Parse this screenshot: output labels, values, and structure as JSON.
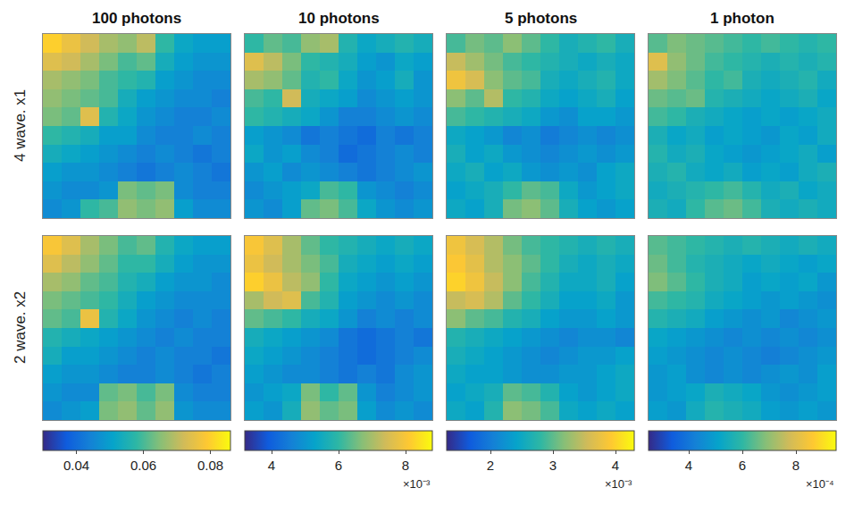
{
  "chart_data": {
    "type": "heatmap",
    "tick_labels": false,
    "rows": [
      "4 wave. x1",
      "2 wave. x2"
    ],
    "columns": [
      {
        "title": "100 photons",
        "color_range": [
          0.03,
          0.086
        ],
        "color_ticks": [
          0.04,
          0.06,
          0.08
        ]
      },
      {
        "title": "10 photons",
        "color_range": [
          0.0032,
          0.0088
        ],
        "color_ticks": [
          {
            "value": 0.004,
            "label": "4"
          },
          {
            "value": 0.006,
            "label": "6"
          },
          {
            "value": 0.008,
            "label": "8"
          }
        ],
        "color_exponent": "×10⁻³"
      },
      {
        "title": "5 photons",
        "color_range": [
          0.0013,
          0.0043
        ],
        "color_ticks": [
          {
            "value": 0.002,
            "label": "2"
          },
          {
            "value": 0.003,
            "label": "3"
          },
          {
            "value": 0.004,
            "label": "4"
          }
        ],
        "color_exponent": "×10⁻³"
      },
      {
        "title": "1 photon",
        "color_range": [
          0.00025,
          0.00095
        ],
        "color_ticks": [
          {
            "value": 0.0004,
            "label": "4"
          },
          {
            "value": 0.0006,
            "label": "6"
          },
          {
            "value": 0.0008,
            "label": "8"
          }
        ],
        "color_exponent": "×10⁻⁴"
      }
    ],
    "cells": [
      [
        [
          [
            0.08,
            0.076,
            0.072,
            0.068,
            0.066,
            0.07,
            0.058,
            0.052,
            0.05,
            0.05
          ],
          [
            0.074,
            0.072,
            0.068,
            0.064,
            0.06,
            0.062,
            0.054,
            0.05,
            0.048,
            0.048
          ],
          [
            0.068,
            0.066,
            0.064,
            0.06,
            0.058,
            0.056,
            0.05,
            0.048,
            0.046,
            0.046
          ],
          [
            0.066,
            0.064,
            0.062,
            0.06,
            0.054,
            0.05,
            0.048,
            0.046,
            0.046,
            0.044
          ],
          [
            0.064,
            0.062,
            0.074,
            0.056,
            0.052,
            0.048,
            0.046,
            0.044,
            0.044,
            0.046
          ],
          [
            0.058,
            0.056,
            0.054,
            0.05,
            0.05,
            0.046,
            0.044,
            0.044,
            0.046,
            0.044
          ],
          [
            0.054,
            0.052,
            0.05,
            0.048,
            0.046,
            0.044,
            0.046,
            0.044,
            0.042,
            0.044
          ],
          [
            0.05,
            0.048,
            0.048,
            0.046,
            0.044,
            0.042,
            0.044,
            0.046,
            0.044,
            0.042
          ],
          [
            0.048,
            0.046,
            0.046,
            0.048,
            0.064,
            0.062,
            0.064,
            0.046,
            0.044,
            0.044
          ],
          [
            0.046,
            0.048,
            0.058,
            0.06,
            0.066,
            0.064,
            0.066,
            0.05,
            0.046,
            0.046
          ]
        ],
        [
          [
            0.006,
            0.0064,
            0.0062,
            0.0068,
            0.007,
            0.0058,
            0.0054,
            0.0056,
            0.0058,
            0.0056
          ],
          [
            0.0076,
            0.0072,
            0.0066,
            0.006,
            0.0058,
            0.0056,
            0.0052,
            0.005,
            0.0054,
            0.0052
          ],
          [
            0.007,
            0.0068,
            0.0064,
            0.0058,
            0.006,
            0.0054,
            0.005,
            0.0052,
            0.0056,
            0.005
          ],
          [
            0.0062,
            0.006,
            0.0074,
            0.0056,
            0.0054,
            0.0052,
            0.0048,
            0.005,
            0.0052,
            0.005
          ],
          [
            0.006,
            0.0058,
            0.0056,
            0.0054,
            0.005,
            0.0046,
            0.0046,
            0.0048,
            0.005,
            0.0048
          ],
          [
            0.0052,
            0.005,
            0.0048,
            0.0044,
            0.0046,
            0.0044,
            0.0042,
            0.0046,
            0.0044,
            0.0046
          ],
          [
            0.0054,
            0.005,
            0.0052,
            0.0048,
            0.0046,
            0.0042,
            0.0044,
            0.0046,
            0.0048,
            0.0046
          ],
          [
            0.005,
            0.0052,
            0.0048,
            0.005,
            0.0048,
            0.0046,
            0.0044,
            0.0046,
            0.0048,
            0.005
          ],
          [
            0.0048,
            0.005,
            0.0052,
            0.0054,
            0.0062,
            0.006,
            0.005,
            0.0048,
            0.0046,
            0.0048
          ],
          [
            0.005,
            0.0048,
            0.0052,
            0.0064,
            0.0066,
            0.0062,
            0.0054,
            0.005,
            0.0048,
            0.005
          ]
        ],
        [
          [
            0.0029,
            0.0031,
            0.003,
            0.0032,
            0.003,
            0.0028,
            0.0026,
            0.0027,
            0.0028,
            0.0026
          ],
          [
            0.0035,
            0.0033,
            0.0031,
            0.0029,
            0.0028,
            0.0027,
            0.0026,
            0.0025,
            0.0026,
            0.0025
          ],
          [
            0.0038,
            0.0036,
            0.0032,
            0.003,
            0.0029,
            0.0026,
            0.0025,
            0.0026,
            0.0027,
            0.0025
          ],
          [
            0.0032,
            0.003,
            0.0034,
            0.0028,
            0.0027,
            0.0025,
            0.0024,
            0.0025,
            0.0026,
            0.0024
          ],
          [
            0.0029,
            0.0028,
            0.0027,
            0.0026,
            0.0025,
            0.0023,
            0.0022,
            0.0024,
            0.0024,
            0.0023
          ],
          [
            0.0025,
            0.0024,
            0.0023,
            0.0021,
            0.0022,
            0.002,
            0.0021,
            0.0022,
            0.0021,
            0.0022
          ],
          [
            0.0026,
            0.0024,
            0.0025,
            0.0023,
            0.0022,
            0.0021,
            0.0022,
            0.0023,
            0.0022,
            0.0023
          ],
          [
            0.0025,
            0.0026,
            0.0024,
            0.0025,
            0.0023,
            0.0022,
            0.0023,
            0.0022,
            0.0024,
            0.0025
          ],
          [
            0.0024,
            0.0025,
            0.0026,
            0.0028,
            0.003,
            0.0029,
            0.0025,
            0.0023,
            0.0024,
            0.0025
          ],
          [
            0.0025,
            0.0024,
            0.0026,
            0.0031,
            0.0032,
            0.003,
            0.0026,
            0.0024,
            0.0023,
            0.0024
          ]
        ],
        [
          [
            0.00064,
            0.00068,
            0.00066,
            0.00064,
            0.00062,
            0.0006,
            0.00062,
            0.0006,
            0.00058,
            0.0006
          ],
          [
            0.0008,
            0.0007,
            0.00066,
            0.00062,
            0.0006,
            0.00058,
            0.00056,
            0.00058,
            0.00056,
            0.00058
          ],
          [
            0.00072,
            0.00068,
            0.00064,
            0.0006,
            0.00062,
            0.00056,
            0.00054,
            0.00056,
            0.00058,
            0.00054
          ],
          [
            0.00066,
            0.00064,
            0.00066,
            0.00058,
            0.00056,
            0.00054,
            0.00052,
            0.00054,
            0.00056,
            0.00052
          ],
          [
            0.00062,
            0.0006,
            0.00056,
            0.00054,
            0.00052,
            0.0005,
            0.00052,
            0.0005,
            0.00052,
            0.00054
          ],
          [
            0.00056,
            0.00052,
            0.00054,
            0.0005,
            0.00052,
            0.0005,
            0.00048,
            0.00052,
            0.0005,
            0.00054
          ],
          [
            0.00058,
            0.00054,
            0.00056,
            0.00052,
            0.0005,
            0.00048,
            0.0005,
            0.00052,
            0.00054,
            0.0005
          ],
          [
            0.00056,
            0.00058,
            0.00054,
            0.00052,
            0.00054,
            0.0005,
            0.00052,
            0.0005,
            0.00054,
            0.00056
          ],
          [
            0.00054,
            0.00056,
            0.00058,
            0.0006,
            0.00062,
            0.00058,
            0.00054,
            0.00056,
            0.00052,
            0.00054
          ],
          [
            0.00056,
            0.00054,
            0.0006,
            0.00064,
            0.00066,
            0.00062,
            0.00056,
            0.00054,
            0.00056,
            0.00054
          ]
        ]
      ],
      [
        [
          [
            0.078,
            0.074,
            0.068,
            0.064,
            0.06,
            0.062,
            0.056,
            0.052,
            0.05,
            0.05
          ],
          [
            0.074,
            0.07,
            0.066,
            0.062,
            0.058,
            0.058,
            0.054,
            0.05,
            0.048,
            0.048
          ],
          [
            0.068,
            0.066,
            0.062,
            0.06,
            0.056,
            0.054,
            0.05,
            0.048,
            0.048,
            0.046
          ],
          [
            0.064,
            0.062,
            0.06,
            0.058,
            0.054,
            0.05,
            0.048,
            0.046,
            0.046,
            0.046
          ],
          [
            0.062,
            0.06,
            0.076,
            0.056,
            0.052,
            0.048,
            0.046,
            0.044,
            0.046,
            0.044
          ],
          [
            0.056,
            0.054,
            0.052,
            0.05,
            0.048,
            0.046,
            0.044,
            0.046,
            0.044,
            0.044
          ],
          [
            0.054,
            0.05,
            0.05,
            0.048,
            0.046,
            0.044,
            0.046,
            0.044,
            0.044,
            0.042
          ],
          [
            0.05,
            0.048,
            0.048,
            0.046,
            0.044,
            0.044,
            0.046,
            0.044,
            0.042,
            0.044
          ],
          [
            0.048,
            0.046,
            0.046,
            0.062,
            0.064,
            0.06,
            0.064,
            0.046,
            0.044,
            0.044
          ],
          [
            0.046,
            0.048,
            0.05,
            0.064,
            0.066,
            0.062,
            0.066,
            0.048,
            0.046,
            0.046
          ]
        ],
        [
          [
            0.008,
            0.0076,
            0.007,
            0.0064,
            0.006,
            0.0058,
            0.0056,
            0.0054,
            0.0056,
            0.0054
          ],
          [
            0.0078,
            0.0074,
            0.007,
            0.0066,
            0.0062,
            0.0056,
            0.0054,
            0.0052,
            0.0054,
            0.0052
          ],
          [
            0.0082,
            0.0078,
            0.0072,
            0.0068,
            0.006,
            0.0054,
            0.0052,
            0.005,
            0.0052,
            0.005
          ],
          [
            0.007,
            0.0074,
            0.0076,
            0.0062,
            0.0058,
            0.0052,
            0.005,
            0.0048,
            0.005,
            0.0048
          ],
          [
            0.0064,
            0.0062,
            0.006,
            0.0056,
            0.0054,
            0.005,
            0.0046,
            0.0048,
            0.0046,
            0.0048
          ],
          [
            0.0056,
            0.0054,
            0.0052,
            0.005,
            0.0048,
            0.0044,
            0.0042,
            0.0044,
            0.0046,
            0.0044
          ],
          [
            0.0054,
            0.0052,
            0.005,
            0.0048,
            0.0046,
            0.0044,
            0.0042,
            0.0044,
            0.0046,
            0.0048
          ],
          [
            0.0052,
            0.005,
            0.0048,
            0.0048,
            0.0046,
            0.0044,
            0.0046,
            0.0044,
            0.0048,
            0.005
          ],
          [
            0.005,
            0.0052,
            0.0054,
            0.0066,
            0.006,
            0.0064,
            0.005,
            0.0046,
            0.0048,
            0.005
          ],
          [
            0.0052,
            0.005,
            0.0056,
            0.0068,
            0.0064,
            0.0066,
            0.0052,
            0.0048,
            0.005,
            0.0048
          ]
        ],
        [
          [
            0.0038,
            0.0036,
            0.0034,
            0.0031,
            0.0029,
            0.0028,
            0.0027,
            0.0026,
            0.0027,
            0.0026
          ],
          [
            0.0039,
            0.0037,
            0.0034,
            0.0032,
            0.003,
            0.0028,
            0.0026,
            0.0025,
            0.0026,
            0.0025
          ],
          [
            0.004,
            0.0038,
            0.0035,
            0.0032,
            0.0029,
            0.0027,
            0.0025,
            0.0025,
            0.0026,
            0.0024
          ],
          [
            0.0035,
            0.0036,
            0.0034,
            0.003,
            0.0028,
            0.0026,
            0.0024,
            0.0024,
            0.0025,
            0.0023
          ],
          [
            0.0032,
            0.003,
            0.0029,
            0.0027,
            0.0026,
            0.0024,
            0.0023,
            0.0023,
            0.0024,
            0.0023
          ],
          [
            0.0027,
            0.0026,
            0.0025,
            0.0024,
            0.0023,
            0.0022,
            0.0021,
            0.0022,
            0.0022,
            0.0021
          ],
          [
            0.0026,
            0.0025,
            0.0024,
            0.0023,
            0.0022,
            0.0021,
            0.0022,
            0.0023,
            0.0023,
            0.0024
          ],
          [
            0.0025,
            0.0024,
            0.0024,
            0.0023,
            0.0022,
            0.0022,
            0.0023,
            0.0023,
            0.0024,
            0.0025
          ],
          [
            0.0024,
            0.0025,
            0.0026,
            0.003,
            0.0029,
            0.0027,
            0.0024,
            0.0023,
            0.0024,
            0.0025
          ],
          [
            0.0025,
            0.0024,
            0.0027,
            0.0032,
            0.0031,
            0.0029,
            0.0025,
            0.0024,
            0.0025,
            0.0024
          ]
        ],
        [
          [
            0.00064,
            0.00062,
            0.0006,
            0.00058,
            0.00056,
            0.00058,
            0.00056,
            0.00054,
            0.00056,
            0.00054
          ],
          [
            0.00066,
            0.00062,
            0.00058,
            0.00056,
            0.00054,
            0.00052,
            0.00054,
            0.00052,
            0.0005,
            0.00052
          ],
          [
            0.00068,
            0.00064,
            0.0006,
            0.00056,
            0.00054,
            0.0005,
            0.00052,
            0.0005,
            0.00052,
            0.00048
          ],
          [
            0.00062,
            0.0006,
            0.00058,
            0.00054,
            0.00052,
            0.0005,
            0.00048,
            0.0005,
            0.00048,
            0.00046
          ],
          [
            0.00058,
            0.00056,
            0.00054,
            0.0005,
            0.00048,
            0.00046,
            0.00048,
            0.00044,
            0.00046,
            0.00048
          ],
          [
            0.00052,
            0.0005,
            0.00048,
            0.00046,
            0.00044,
            0.00046,
            0.00044,
            0.00046,
            0.00044,
            0.00046
          ],
          [
            0.0005,
            0.00048,
            0.00046,
            0.00044,
            0.00046,
            0.00044,
            0.00042,
            0.00044,
            0.00046,
            0.00048
          ],
          [
            0.00048,
            0.0005,
            0.00046,
            0.00044,
            0.00046,
            0.00044,
            0.00046,
            0.00048,
            0.00046,
            0.0005
          ],
          [
            0.00048,
            0.0005,
            0.00052,
            0.00056,
            0.00054,
            0.00052,
            0.00048,
            0.00046,
            0.00048,
            0.0005
          ],
          [
            0.0005,
            0.00048,
            0.00054,
            0.00058,
            0.00056,
            0.00054,
            0.0005,
            0.00048,
            0.0005,
            0.00048
          ]
        ]
      ]
    ]
  }
}
